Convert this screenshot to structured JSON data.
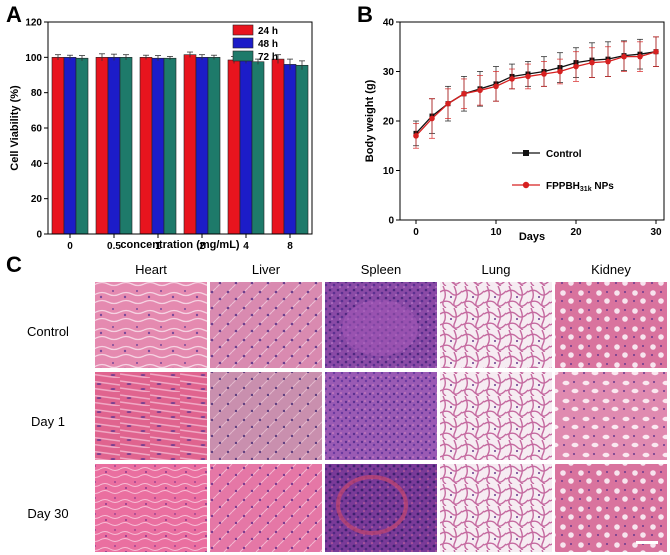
{
  "panel_labels": {
    "a": "A",
    "b": "B",
    "c": "C"
  },
  "chart_data": [
    {
      "type": "bar",
      "title": "",
      "xlabel": "concentration (mg/mL)",
      "ylabel": "Cell Viability (%)",
      "ylim": [
        0,
        120
      ],
      "yticks": [
        "0",
        "20",
        "40",
        "60",
        "80",
        "100",
        "120"
      ],
      "categories": [
        "0",
        "0.5",
        "1",
        "2",
        "4",
        "8"
      ],
      "series": [
        {
          "name": "24 h",
          "color": "#e8141e",
          "values": [
            100,
            100,
            100,
            101.5,
            98.5,
            99
          ],
          "errors": [
            1.5,
            2,
            1.2,
            1.5,
            2,
            2.5
          ]
        },
        {
          "name": "48 h",
          "color": "#1c1cc8",
          "values": [
            100,
            100,
            99.5,
            100,
            98.5,
            96
          ],
          "errors": [
            1.2,
            1.8,
            1.5,
            1.5,
            2,
            3
          ]
        },
        {
          "name": "72 h",
          "color": "#1e7a6a",
          "values": [
            99.5,
            100,
            99.5,
            100,
            97.5,
            95.5
          ],
          "errors": [
            1.5,
            1.5,
            1,
            1.2,
            1.5,
            2.5
          ]
        }
      ]
    },
    {
      "type": "line",
      "title": "",
      "xlabel": "Days",
      "ylabel": "Body weight (g)",
      "xlim": [
        -2,
        31
      ],
      "ylim": [
        0,
        40
      ],
      "xticks": [
        "0",
        "10",
        "20",
        "30"
      ],
      "yticks": [
        "0",
        "10",
        "20",
        "30",
        "40"
      ],
      "series": [
        {
          "name": "Control",
          "color": "#111111",
          "marker": "square",
          "x": [
            0,
            2,
            4,
            6,
            8,
            10,
            12,
            14,
            16,
            18,
            20,
            22,
            24,
            26,
            28,
            30
          ],
          "y": [
            17.5,
            21,
            23.5,
            25.5,
            26.5,
            27.5,
            29,
            29.5,
            30,
            30.8,
            31.8,
            32.3,
            32.5,
            33.2,
            33.5,
            34
          ],
          "errors": [
            2.5,
            3.5,
            3.5,
            3.5,
            3.5,
            3.5,
            2.5,
            2.5,
            3,
            3,
            3,
            3.5,
            3.5,
            3,
            3,
            3
          ]
        },
        {
          "name": "FPPBH31k NPs",
          "color": "#d62020",
          "marker": "circle",
          "x": [
            0,
            2,
            4,
            6,
            8,
            10,
            12,
            14,
            16,
            18,
            20,
            22,
            24,
            26,
            28,
            30
          ],
          "y": [
            17,
            20.5,
            23.5,
            25.5,
            26.2,
            27,
            28.5,
            29,
            29.5,
            30,
            31,
            31.8,
            32,
            33,
            33,
            34
          ],
          "errors": [
            2.5,
            4,
            3,
            3,
            3,
            3,
            2,
            2.5,
            2.5,
            2.5,
            3,
            3,
            3,
            3,
            3,
            3
          ]
        }
      ]
    }
  ],
  "legend_b": {
    "control": "Control",
    "nps_main": "FPPBH",
    "nps_sub": "31k",
    "nps_suffix": " NPs"
  },
  "histology": {
    "columns": [
      "Heart",
      "Liver",
      "Spleen",
      "Lung",
      "Kidney"
    ],
    "rows": [
      "Control",
      "Day 1",
      "Day 30"
    ],
    "tissue_colors": {
      "Heart": "#e37aa6",
      "Liver": "#d98ab0",
      "Spleen": "#8a4aa6",
      "Lung": "#f2e3ee",
      "Kidney": "#d9739e"
    },
    "scale_bar_color": "#ffffff"
  }
}
